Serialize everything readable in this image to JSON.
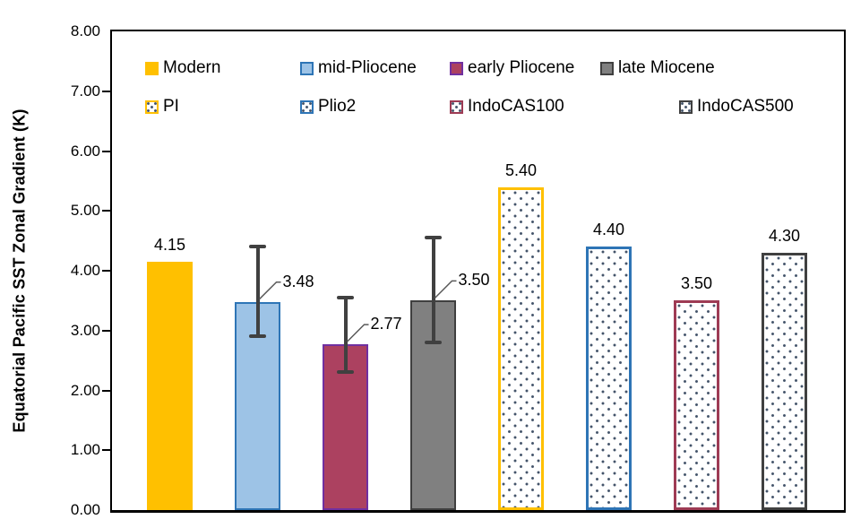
{
  "y_axis": {
    "title": "Equatorial Pacific SST Zonal Gradient (K)",
    "tick_labels": [
      "8.00",
      "7.00",
      "6.00",
      "5.00",
      "4.00",
      "3.00",
      "2.00",
      "1.00",
      "0.00"
    ]
  },
  "legend": {
    "rows": [
      [
        {
          "label": "Modern",
          "fill": "#FFC000",
          "border": "#FFC000",
          "pattern": "solid"
        },
        {
          "label": "mid-Pliocene",
          "fill": "#9DC3E6",
          "border": "#2E75B6",
          "pattern": "solid"
        },
        {
          "label": "early Pliocene",
          "fill": "#AC4160",
          "border": "#7030A0",
          "pattern": "solid"
        },
        {
          "label": "late Miocene",
          "fill": "#808080",
          "border": "#404040",
          "pattern": "solid"
        }
      ],
      [
        {
          "label": "PI",
          "fill": "#FFFFFF",
          "border": "#FFC000",
          "pattern": "dots"
        },
        {
          "label": "Plio2",
          "fill": "#FFFFFF",
          "border": "#2E75B6",
          "pattern": "dots"
        },
        {
          "label": "IndoCAS100",
          "fill": "#FFFFFF",
          "border": "#9E3B54",
          "pattern": "dots"
        },
        {
          "label": "IndoCAS500",
          "fill": "#FFFFFF",
          "border": "#404040",
          "pattern": "dots"
        }
      ]
    ]
  },
  "chart_data": {
    "type": "bar",
    "title": "",
    "xlabel": "",
    "ylabel": "Equatorial Pacific SST Zonal Gradient (K)",
    "ylim": [
      0,
      8
    ],
    "ytick_step": 1.0,
    "grid": false,
    "legend_position": "top-left-inside",
    "categories": [
      "Modern",
      "mid-Pliocene",
      "early Pliocene",
      "late Miocene",
      "PI",
      "Plio2",
      "IndoCAS100",
      "IndoCAS500"
    ],
    "values": [
      4.15,
      3.48,
      2.77,
      3.5,
      5.4,
      4.4,
      3.5,
      4.3
    ],
    "data_labels": [
      "4.15",
      "3.48",
      "2.77",
      "3.50",
      "5.40",
      "4.40",
      "3.50",
      "4.30"
    ],
    "error_bars": [
      null,
      {
        "low": 2.9,
        "high": 4.4
      },
      {
        "low": 2.3,
        "high": 3.55
      },
      {
        "low": 2.8,
        "high": 4.55
      },
      null,
      null,
      null,
      null
    ],
    "bars": [
      {
        "name": "Modern",
        "value": 4.15,
        "label": "4.15",
        "fill": "#FFC000",
        "border": "none",
        "border_width": 0,
        "pattern": "solid",
        "label_placement": "above"
      },
      {
        "name": "mid-Pliocene",
        "value": 3.48,
        "label": "3.48",
        "fill": "#9DC3E6",
        "border": "#2E75B6",
        "border_width": 2,
        "pattern": "solid",
        "label_placement": "right",
        "error": {
          "low": 2.9,
          "high": 4.4
        }
      },
      {
        "name": "early Pliocene",
        "value": 2.77,
        "label": "2.77",
        "fill": "#AC4160",
        "border": "#7030A0",
        "border_width": 2,
        "pattern": "solid",
        "label_placement": "right",
        "error": {
          "low": 2.3,
          "high": 3.55
        }
      },
      {
        "name": "late Miocene",
        "value": 3.5,
        "label": "3.50",
        "fill": "#808080",
        "border": "#3F3F3F",
        "border_width": 2,
        "pattern": "solid",
        "label_placement": "right",
        "error": {
          "low": 2.8,
          "high": 4.55
        }
      },
      {
        "name": "PI",
        "value": 5.4,
        "label": "5.40",
        "fill": "#FFFFFF",
        "border": "#FFC000",
        "border_width": 3,
        "pattern": "dots",
        "label_placement": "above"
      },
      {
        "name": "Plio2",
        "value": 4.4,
        "label": "4.40",
        "fill": "#FFFFFF",
        "border": "#2E75B6",
        "border_width": 3,
        "pattern": "dots",
        "label_placement": "above"
      },
      {
        "name": "IndoCAS100",
        "value": 3.5,
        "label": "3.50",
        "fill": "#FFFFFF",
        "border": "#9E3B54",
        "border_width": 3,
        "pattern": "dots",
        "label_placement": "above"
      },
      {
        "name": "IndoCAS500",
        "value": 4.3,
        "label": "4.30",
        "fill": "#FFFFFF",
        "border": "#404040",
        "border_width": 3,
        "pattern": "dots",
        "label_placement": "above"
      }
    ]
  },
  "colors": {
    "axis": "#000000",
    "error_bar": "#404040",
    "leader_line": "#595959",
    "dot_pattern": "#44546A"
  }
}
